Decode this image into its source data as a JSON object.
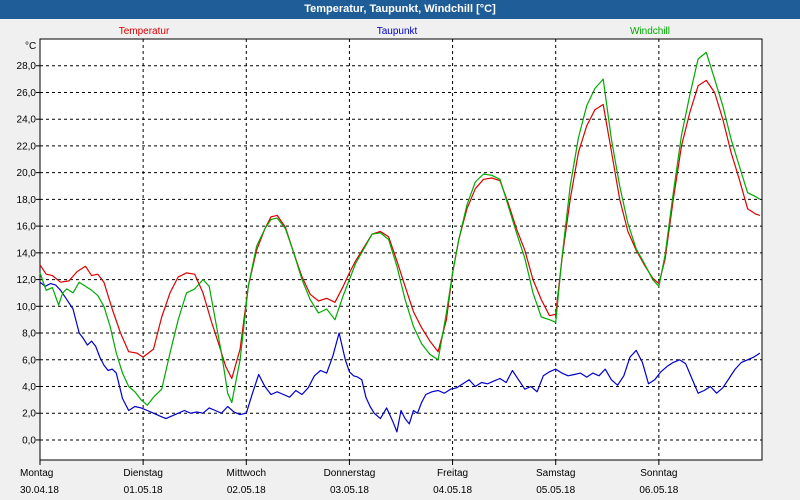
{
  "window": {
    "title": "Temperatur, Taupunkt, Windchill [°C]"
  },
  "chart_data": {
    "type": "line",
    "title": "Temperatur, Taupunkt, Windchill [°C]",
    "ylabel": "°C",
    "xlabel": "",
    "ylim": [
      -1.5,
      30
    ],
    "xlim": [
      0,
      7
    ],
    "grid": true,
    "y_ticks": [
      "0,0",
      "2,0",
      "4,0",
      "6,0",
      "8,0",
      "10,0",
      "12,0",
      "14,0",
      "16,0",
      "18,0",
      "20,0",
      "22,0",
      "24,0",
      "26,0",
      "28,0"
    ],
    "x_ticks": [
      {
        "day": "Montag",
        "date": "30.04.18"
      },
      {
        "day": "Dienstag",
        "date": "01.05.18"
      },
      {
        "day": "Mittwoch",
        "date": "02.05.18"
      },
      {
        "day": "Donnerstag",
        "date": "03.05.18"
      },
      {
        "day": "Freitag",
        "date": "04.05.18"
      },
      {
        "day": "Samstag",
        "date": "05.05.18"
      },
      {
        "day": "Sonntag",
        "date": "06.05.18"
      }
    ],
    "series": [
      {
        "name": "Temperatur",
        "color": "#dd0000",
        "x": [
          0,
          0.06,
          0.12,
          0.2,
          0.28,
          0.36,
          0.44,
          0.5,
          0.56,
          0.62,
          0.7,
          0.78,
          0.86,
          0.94,
          1.0,
          1.1,
          1.18,
          1.26,
          1.34,
          1.42,
          1.5,
          1.58,
          1.66,
          1.74,
          1.8,
          1.86,
          1.94,
          2.02,
          2.1,
          2.18,
          2.24,
          2.3,
          2.38,
          2.46,
          2.54,
          2.62,
          2.7,
          2.78,
          2.86,
          2.94,
          3.0,
          3.06,
          3.14,
          3.22,
          3.3,
          3.38,
          3.46,
          3.54,
          3.62,
          3.7,
          3.78,
          3.86,
          3.94,
          4.0,
          4.06,
          4.14,
          4.22,
          4.3,
          4.38,
          4.46,
          4.54,
          4.62,
          4.7,
          4.78,
          4.86,
          4.94,
          5.0,
          5.06,
          5.14,
          5.22,
          5.3,
          5.38,
          5.46,
          5.54,
          5.62,
          5.7,
          5.78,
          5.86,
          5.94,
          6.0,
          6.06,
          6.14,
          6.22,
          6.3,
          6.38,
          6.46,
          6.54,
          6.62,
          6.7,
          6.78,
          6.86,
          6.94,
          6.98
        ],
        "values": [
          13.1,
          12.4,
          12.3,
          11.8,
          11.9,
          12.6,
          13.0,
          12.3,
          12.4,
          11.8,
          9.8,
          8.0,
          6.6,
          6.5,
          6.2,
          6.8,
          9.2,
          11.0,
          12.2,
          12.5,
          12.4,
          11.0,
          8.9,
          7.0,
          5.5,
          4.6,
          6.8,
          11.5,
          14.2,
          15.8,
          16.7,
          16.8,
          15.9,
          14.0,
          12.2,
          10.9,
          10.4,
          10.6,
          10.3,
          11.5,
          12.5,
          13.4,
          14.4,
          15.4,
          15.6,
          15.2,
          13.4,
          11.5,
          9.6,
          8.4,
          7.4,
          6.6,
          9.0,
          12.5,
          15.0,
          17.3,
          18.8,
          19.5,
          19.6,
          19.4,
          17.7,
          15.8,
          14.2,
          12.0,
          10.5,
          9.3,
          9.4,
          13.5,
          18.0,
          21.5,
          23.5,
          24.7,
          25.1,
          21.6,
          18.0,
          15.6,
          14.2,
          13.1,
          12.1,
          11.7,
          13.5,
          18.0,
          22.0,
          24.5,
          26.5,
          26.9,
          26.0,
          24.0,
          21.5,
          19.5,
          17.3,
          16.9,
          16.8
        ]
      },
      {
        "name": "Taupunkt",
        "color": "#0000cc",
        "x": [
          0,
          0.05,
          0.1,
          0.15,
          0.2,
          0.26,
          0.32,
          0.38,
          0.42,
          0.46,
          0.5,
          0.54,
          0.58,
          0.62,
          0.66,
          0.7,
          0.74,
          0.8,
          0.86,
          0.92,
          0.98,
          1.04,
          1.1,
          1.16,
          1.22,
          1.28,
          1.34,
          1.4,
          1.46,
          1.52,
          1.58,
          1.64,
          1.7,
          1.76,
          1.82,
          1.88,
          1.94,
          2.0,
          2.06,
          2.12,
          2.18,
          2.24,
          2.3,
          2.36,
          2.42,
          2.48,
          2.54,
          2.6,
          2.66,
          2.72,
          2.78,
          2.84,
          2.9,
          2.96,
          3.0,
          3.04,
          3.08,
          3.12,
          3.16,
          3.2,
          3.24,
          3.3,
          3.36,
          3.42,
          3.46,
          3.5,
          3.54,
          3.58,
          3.62,
          3.66,
          3.7,
          3.74,
          3.8,
          3.86,
          3.92,
          3.98,
          4.04,
          4.1,
          4.16,
          4.22,
          4.28,
          4.34,
          4.4,
          4.46,
          4.52,
          4.58,
          4.64,
          4.7,
          4.76,
          4.82,
          4.88,
          4.94,
          5.0,
          5.06,
          5.12,
          5.18,
          5.24,
          5.3,
          5.36,
          5.42,
          5.48,
          5.54,
          5.6,
          5.66,
          5.72,
          5.78,
          5.84,
          5.9,
          5.96,
          6.02,
          6.08,
          6.14,
          6.2,
          6.26,
          6.32,
          6.38,
          6.44,
          6.5,
          6.56,
          6.62,
          6.68,
          6.74,
          6.8,
          6.86,
          6.92,
          6.98
        ],
        "values": [
          11.8,
          11.5,
          11.7,
          11.6,
          11.2,
          10.5,
          9.8,
          8.0,
          7.6,
          7.1,
          7.4,
          7.0,
          6.2,
          5.6,
          5.2,
          5.3,
          5.0,
          3.1,
          2.2,
          2.5,
          2.4,
          2.2,
          2.0,
          1.8,
          1.6,
          1.8,
          2.0,
          2.2,
          2.0,
          2.1,
          2.0,
          2.4,
          2.2,
          2.0,
          2.5,
          2.1,
          1.9,
          2.0,
          3.5,
          4.9,
          4.0,
          3.4,
          3.6,
          3.4,
          3.2,
          3.7,
          3.4,
          3.9,
          4.8,
          5.2,
          5.0,
          6.3,
          8.0,
          6.0,
          5.1,
          4.8,
          4.7,
          4.5,
          3.2,
          2.5,
          2.0,
          1.6,
          2.4,
          1.4,
          0.6,
          2.2,
          1.6,
          1.2,
          2.2,
          2.0,
          2.8,
          3.4,
          3.6,
          3.7,
          3.5,
          3.8,
          3.9,
          4.2,
          4.5,
          4.0,
          4.3,
          4.2,
          4.4,
          4.6,
          4.3,
          5.2,
          4.5,
          3.8,
          4.0,
          3.6,
          4.8,
          5.1,
          5.3,
          5.0,
          4.8,
          4.9,
          5.0,
          4.7,
          5.0,
          4.8,
          5.3,
          4.5,
          4.1,
          4.8,
          6.2,
          6.7,
          5.8,
          4.2,
          4.5,
          5.1,
          5.5,
          5.8,
          6.0,
          5.7,
          4.6,
          3.5,
          3.7,
          4.0,
          3.5,
          3.9,
          4.6,
          5.3,
          5.8,
          6.0,
          6.2,
          6.5
        ]
      },
      {
        "name": "Windchill",
        "color": "#00aa00",
        "x": [
          0,
          0.06,
          0.12,
          0.18,
          0.22,
          0.26,
          0.32,
          0.38,
          0.44,
          0.5,
          0.56,
          0.62,
          0.68,
          0.74,
          0.8,
          0.86,
          0.92,
          0.98,
          1.04,
          1.1,
          1.18,
          1.26,
          1.34,
          1.42,
          1.5,
          1.58,
          1.64,
          1.7,
          1.76,
          1.82,
          1.86,
          1.94,
          2.02,
          2.1,
          2.18,
          2.24,
          2.3,
          2.38,
          2.46,
          2.54,
          2.62,
          2.7,
          2.78,
          2.86,
          2.94,
          3.0,
          3.06,
          3.14,
          3.22,
          3.3,
          3.38,
          3.46,
          3.54,
          3.62,
          3.7,
          3.78,
          3.86,
          3.94,
          4.0,
          4.06,
          4.14,
          4.22,
          4.3,
          4.38,
          4.46,
          4.54,
          4.62,
          4.7,
          4.78,
          4.86,
          4.94,
          5.0,
          5.06,
          5.14,
          5.22,
          5.3,
          5.38,
          5.46,
          5.54,
          5.62,
          5.7,
          5.78,
          5.86,
          5.94,
          6.0,
          6.06,
          6.14,
          6.22,
          6.3,
          6.38,
          6.46,
          6.54,
          6.62,
          6.7,
          6.78,
          6.86,
          6.94,
          6.98
        ],
        "values": [
          12.5,
          11.2,
          11.4,
          10.1,
          11.0,
          11.3,
          11.0,
          11.8,
          11.5,
          11.2,
          10.8,
          10.0,
          8.5,
          6.5,
          5.0,
          4.0,
          3.6,
          3.0,
          2.6,
          3.2,
          3.8,
          6.5,
          9.0,
          11.0,
          11.3,
          12.0,
          11.5,
          9.0,
          6.5,
          3.5,
          2.8,
          6.0,
          11.5,
          14.5,
          15.8,
          16.5,
          16.6,
          15.8,
          14.0,
          12.0,
          10.5,
          9.5,
          9.8,
          9.0,
          10.8,
          12.0,
          13.2,
          14.3,
          15.4,
          15.5,
          15.0,
          13.0,
          10.5,
          8.5,
          7.2,
          6.4,
          6.0,
          9.5,
          12.5,
          15.0,
          17.6,
          19.3,
          19.9,
          19.8,
          19.5,
          17.5,
          15.5,
          13.6,
          11.0,
          9.2,
          9.0,
          8.8,
          13.6,
          19.0,
          22.6,
          25.0,
          26.3,
          27.0,
          22.5,
          19.0,
          16.2,
          14.3,
          13.2,
          12.0,
          11.5,
          13.8,
          18.5,
          22.8,
          25.8,
          28.5,
          29.0,
          27.0,
          25.0,
          22.5,
          20.5,
          18.5,
          18.2,
          18.0
        ]
      }
    ]
  }
}
